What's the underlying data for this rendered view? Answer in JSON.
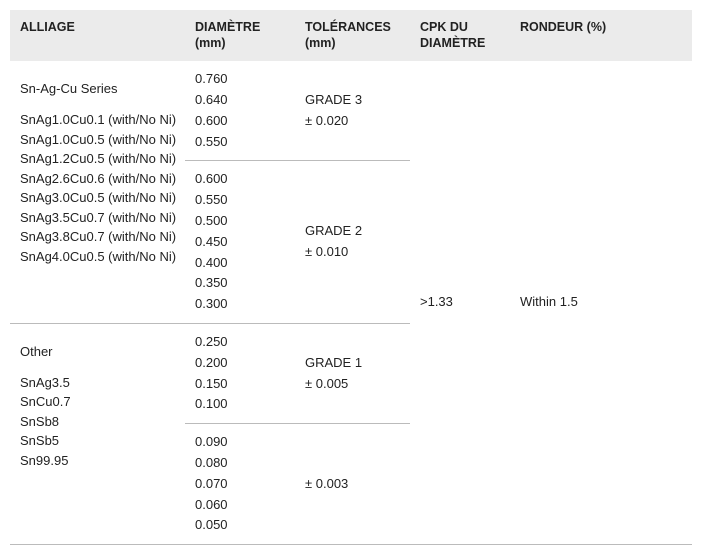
{
  "headers": {
    "alloy": "ALLIAGE",
    "diameter": "DIAMÈTRE (mm)",
    "tolerance": "TOLÉRANCES (mm)",
    "cpk": "CPK DU DIAMÈTRE",
    "roundness": "RONDEUR (%)"
  },
  "groups": [
    {
      "title": "Sn-Ag-Cu Series",
      "alloys": [
        "SnAg1.0Cu0.1 (with/No Ni)",
        "SnAg1.0Cu0.5 (with/No Ni)",
        "SnAg1.2Cu0.5 (with/No Ni)",
        "SnAg2.6Cu0.6 (with/No Ni)",
        "SnAg3.0Cu0.5 (with/No Ni)",
        "SnAg3.5Cu0.7 (with/No Ni)",
        "SnAg3.8Cu0.7 (with/No Ni)",
        "SnAg4.0Cu0.5 (with/No Ni)"
      ],
      "sections": [
        {
          "diameters": [
            "0.760",
            "0.640",
            "0.600",
            "0.550"
          ],
          "tolerance": "GRADE 3\n± 0.020"
        },
        {
          "diameters": [
            "0.600",
            "0.550",
            "0.500",
            "0.450",
            "0.400",
            "0.350",
            "0.300"
          ],
          "tolerance": "GRADE 2\n± 0.010"
        }
      ]
    },
    {
      "title": "Other",
      "alloys": [
        "SnAg3.5",
        "SnCu0.7",
        "SnSb8",
        "SnSb5",
        "Sn99.95"
      ],
      "sections": [
        {
          "diameters": [
            "0.250",
            "0.200",
            "0.150",
            "0.100"
          ],
          "tolerance": "GRADE 1\n± 0.005"
        },
        {
          "diameters": [
            "0.090",
            "0.080",
            "0.070",
            "0.060",
            "0.050"
          ],
          "tolerance": "± 0.003"
        }
      ]
    }
  ],
  "cpk": ">1.33",
  "roundness": "Within 1.5"
}
